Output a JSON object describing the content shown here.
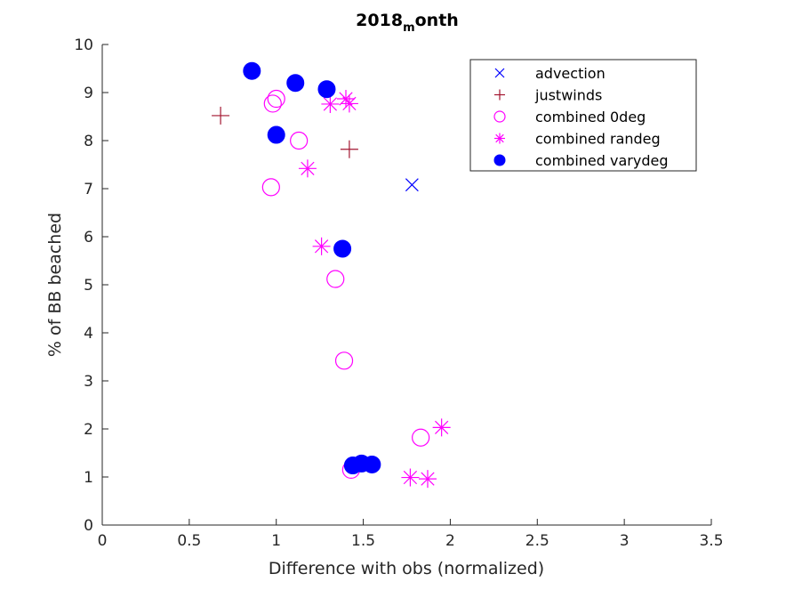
{
  "chart_data": {
    "type": "scatter",
    "title": "2018",
    "title_subscript": "m",
    "title_suffix": "onth",
    "xlabel": "Difference with obs (normalized)",
    "ylabel": "% of BB beached",
    "xlim": [
      0,
      3.5
    ],
    "ylim": [
      0,
      10
    ],
    "x_ticks": [
      "0",
      "0.5",
      "1",
      "1.5",
      "2",
      "2.5",
      "3",
      "3.5"
    ],
    "y_ticks": [
      "0",
      "1",
      "2",
      "3",
      "4",
      "5",
      "6",
      "7",
      "8",
      "9",
      "10"
    ],
    "grid": false,
    "legend_position": "top-right",
    "series": [
      {
        "name": "advection",
        "marker": "x",
        "color": "#0000ff",
        "points": [
          [
            1.78,
            7.08
          ]
        ]
      },
      {
        "name": "justwinds",
        "marker": "plus",
        "color": "#a2142f",
        "points": [
          [
            0.68,
            8.52
          ],
          [
            1.42,
            7.82
          ]
        ]
      },
      {
        "name": "combined 0deg",
        "marker": "circle",
        "color": "#ff00ff",
        "points": [
          [
            0.98,
            8.77
          ],
          [
            1.0,
            8.87
          ],
          [
            1.13,
            8.0
          ],
          [
            0.97,
            7.03
          ],
          [
            1.34,
            5.12
          ],
          [
            1.39,
            3.42
          ],
          [
            1.83,
            1.82
          ],
          [
            1.43,
            1.15
          ]
        ]
      },
      {
        "name": "combined randeg",
        "marker": "asterisk",
        "color": "#ff00ff",
        "points": [
          [
            1.31,
            8.76
          ],
          [
            1.4,
            8.87
          ],
          [
            1.42,
            8.77
          ],
          [
            1.18,
            7.42
          ],
          [
            1.26,
            5.8
          ],
          [
            1.95,
            2.03
          ],
          [
            1.77,
            0.99
          ],
          [
            1.87,
            0.96
          ]
        ]
      },
      {
        "name": "combined varydeg",
        "marker": "filled-circle",
        "color": "#0000ff",
        "points": [
          [
            0.86,
            9.45
          ],
          [
            1.11,
            9.2
          ],
          [
            1.29,
            9.07
          ],
          [
            1.0,
            8.12
          ],
          [
            1.38,
            5.75
          ],
          [
            1.44,
            1.24
          ],
          [
            1.49,
            1.28
          ],
          [
            1.55,
            1.26
          ]
        ]
      }
    ]
  }
}
